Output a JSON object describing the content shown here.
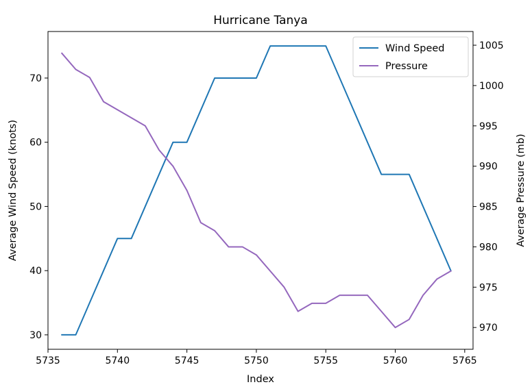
{
  "chart_data": {
    "type": "line",
    "title": "Hurricane Tanya",
    "xlabel": "Index",
    "ylabel": "Average Wind Speed (knots)",
    "y2label": "Average Pressure (mb)",
    "xlim": [
      5735,
      5765.6
    ],
    "ylim": [
      27.75,
      77.25
    ],
    "y2lim": [
      967.3,
      1006.7
    ],
    "x_ticks": [
      5735,
      5740,
      5745,
      5750,
      5755,
      5760,
      5765
    ],
    "y_ticks": [
      30,
      40,
      50,
      60,
      70
    ],
    "y2_ticks": [
      970,
      975,
      980,
      985,
      990,
      995,
      1000,
      1005
    ],
    "grid": false,
    "legend_position": "top-right",
    "x": [
      5736,
      5737,
      5738,
      5739,
      5740,
      5741,
      5742,
      5743,
      5744,
      5745,
      5746,
      5747,
      5748,
      5749,
      5750,
      5751,
      5752,
      5753,
      5754,
      5755,
      5756,
      5757,
      5758,
      5759,
      5760,
      5761,
      5762,
      5763,
      5764
    ],
    "series": [
      {
        "name": "Wind Speed",
        "axis": "left",
        "color": "#1f77b4",
        "values": [
          30,
          30,
          35,
          40,
          45,
          45,
          50,
          55,
          60,
          60,
          65,
          70,
          70,
          70,
          70,
          75,
          75,
          75,
          75,
          75,
          70,
          65,
          60,
          55,
          55,
          55,
          50,
          45,
          40
        ]
      },
      {
        "name": "Pressure",
        "axis": "right",
        "color": "#9467bd",
        "values": [
          1004,
          1002,
          1001,
          998,
          997,
          996,
          995,
          992,
          990,
          987,
          983,
          982,
          980,
          980,
          979,
          977,
          975,
          972,
          973,
          973,
          974,
          974,
          974,
          972,
          970,
          971,
          974,
          976,
          977
        ]
      }
    ]
  }
}
